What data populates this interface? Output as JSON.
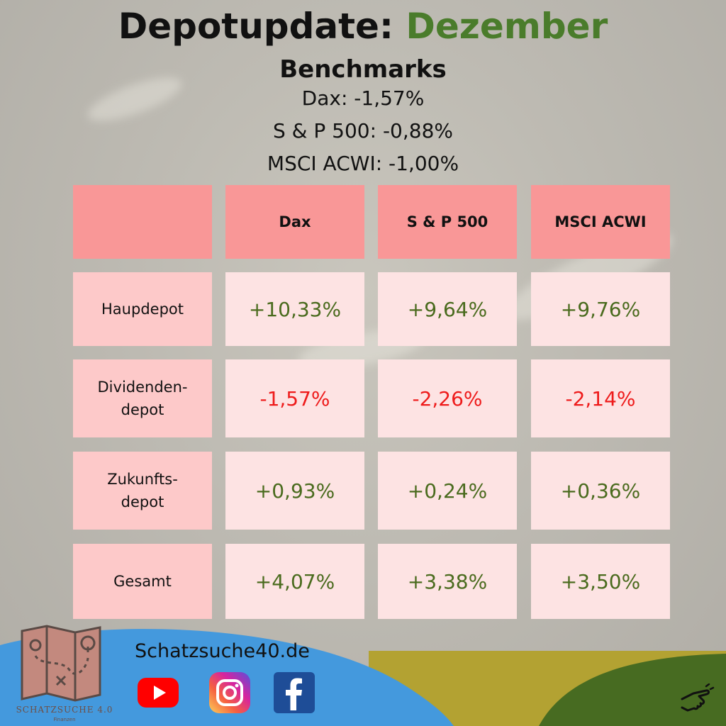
{
  "title": {
    "main": "Depotupdate:",
    "accent": "Dezember"
  },
  "benchmarks": {
    "heading": "Benchmarks",
    "lines": [
      "Dax: -1,57%",
      "S & P 500: -0,88%",
      "MSCI ACWI:  -1,00%"
    ]
  },
  "table": {
    "columns": [
      "",
      "Dax",
      "S & P 500",
      "MSCI ACWI"
    ],
    "rows": [
      {
        "label": "Haupdepot",
        "values": [
          "+10,33%",
          "+9,64%",
          "+9,76%"
        ],
        "trend": "positive"
      },
      {
        "label": "Dividenden-\ndepot",
        "values": [
          "-1,57%",
          "-2,26%",
          "-2,14%"
        ],
        "trend": "negative"
      },
      {
        "label": "Zukunfts-\ndepot",
        "values": [
          "+0,93%",
          "+0,24%",
          "+0,36%"
        ],
        "trend": "positive"
      },
      {
        "label": "Gesamt",
        "values": [
          "+4,07%",
          "+3,38%",
          "+3,50%"
        ],
        "trend": "positive"
      }
    ]
  },
  "footer": {
    "website": "Schatzsuche40.de",
    "brand_name": "SCHATZSUCHE 4.0",
    "brand_sub": "Finanzen",
    "icons": [
      "map-logo-icon",
      "youtube-icon",
      "instagram-icon",
      "facebook-icon",
      "hand-pointer-icon"
    ]
  },
  "colors": {
    "accent_green": "#4a7c2b",
    "positive": "#4a6b1e",
    "negative": "#ee1b1b",
    "header_cell": "#f99797",
    "label_cell": "#fdc9c9",
    "value_cell": "#fde3e3",
    "footer_blue": "#4499dd",
    "footer_olive": "#b3a232",
    "footer_green": "#476b21"
  }
}
